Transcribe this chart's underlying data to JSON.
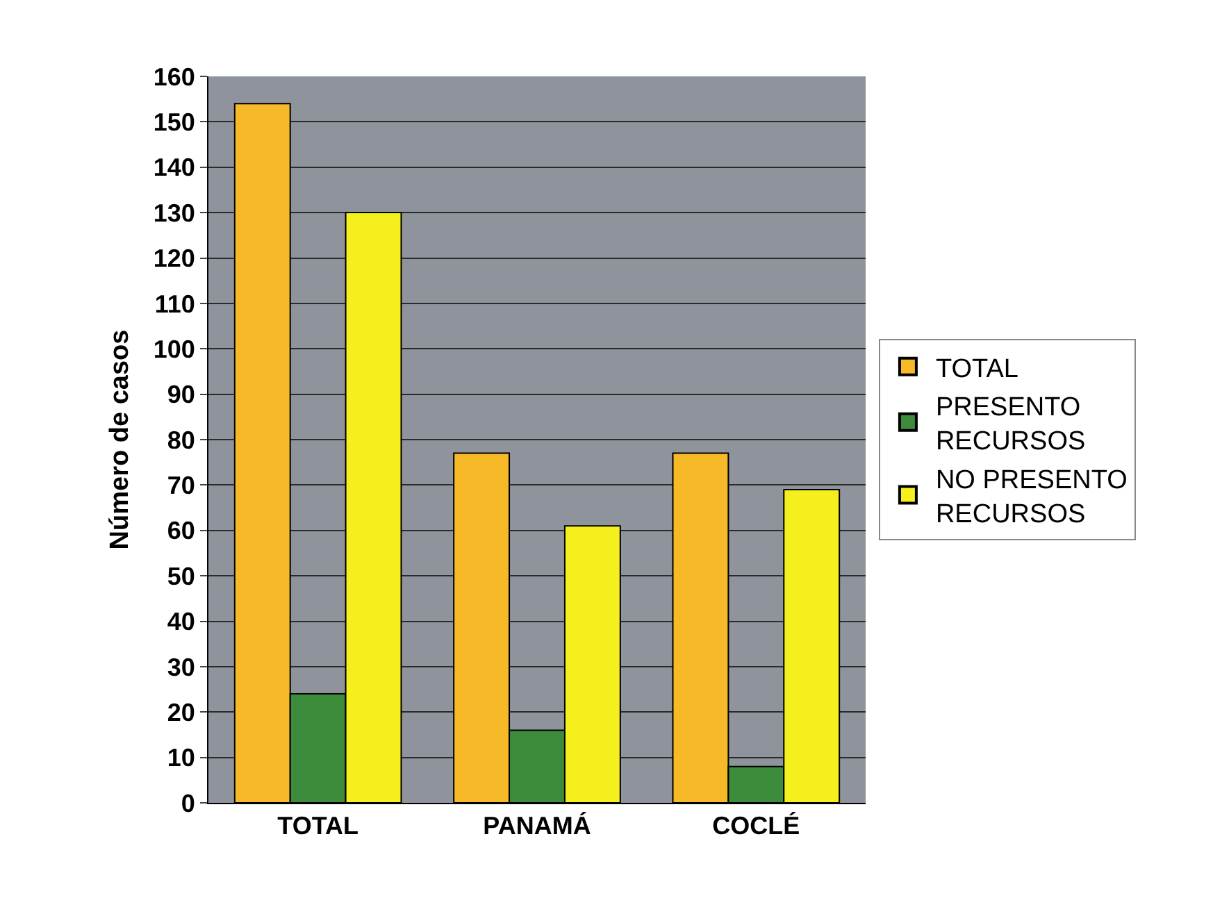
{
  "chart_data": {
    "type": "bar",
    "ylabel": "Número de casos",
    "categories": [
      "TOTAL",
      "PANAMÁ",
      "COCLÉ"
    ],
    "series": [
      {
        "name": "TOTAL",
        "color": "#f6b928",
        "values": [
          154,
          77,
          77
        ]
      },
      {
        "name": "PRESENTO RECURSOS",
        "color": "#3c8c3c",
        "values": [
          24,
          16,
          8
        ]
      },
      {
        "name": "NO PRESENTO RECURSOS",
        "color": "#f6ef1e",
        "values": [
          130,
          61,
          69
        ]
      }
    ],
    "ylim": [
      0,
      160
    ],
    "yticks": [
      0,
      10,
      20,
      30,
      40,
      50,
      60,
      70,
      80,
      90,
      100,
      110,
      120,
      130,
      140,
      150,
      160
    ],
    "grid": "y",
    "legend": "right"
  }
}
